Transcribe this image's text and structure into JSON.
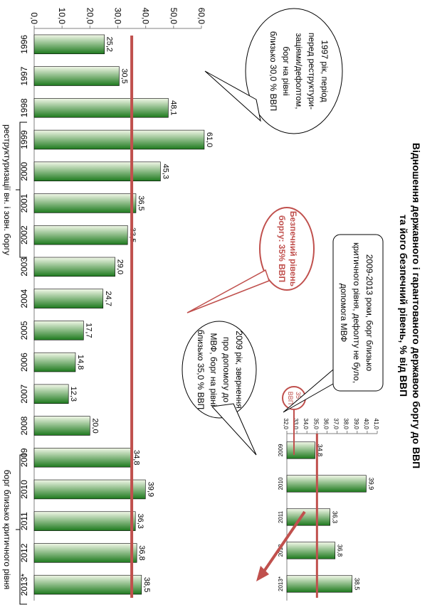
{
  "title_line1": "Відношення державного і гарантованого державою боргу до ВВП",
  "title_line2": "та його безпечний рівень, % від ВВП",
  "colors": {
    "bar_dark": "#1e7a1e",
    "bar_light": "#f2f8e8",
    "safe_line": "#c0504d",
    "axis": "#808080"
  },
  "chart_data": [
    {
      "type": "bar",
      "categories": [
        "1996",
        "1997",
        "1998",
        "1999",
        "2000",
        "2001",
        "2002",
        "2003",
        "2004",
        "2005",
        "2006",
        "2007",
        "2008",
        "2009",
        "2010",
        "2011",
        "2012",
        "2013*"
      ],
      "values": [
        25.2,
        30.5,
        48.1,
        61.0,
        45.3,
        36.5,
        33.5,
        29.0,
        24.7,
        17.7,
        14.8,
        12.3,
        20.0,
        34.8,
        39.9,
        36.3,
        36.8,
        38.5
      ],
      "value_labels": [
        "25,2",
        "30,5",
        "48,1",
        "61,0",
        "45,3",
        "36,5",
        "33,5",
        "29,0",
        "24,7",
        "17,7",
        "14,8",
        "12,3",
        "20,0",
        "34,8",
        "39,9",
        "36,3",
        "36,8",
        "38,5"
      ],
      "ylim": [
        0,
        60
      ],
      "yticks": [
        "0,0",
        "10,0",
        "20,0",
        "30,0",
        "40,0",
        "50,0",
        "60,0"
      ],
      "reference_line": 35
    },
    {
      "type": "bar",
      "categories": [
        "2009",
        "2010",
        "2011",
        "2012",
        "2013*"
      ],
      "values": [
        34.8,
        39.9,
        36.3,
        36.8,
        38.5
      ],
      "value_labels": [
        "34,8",
        "39,9",
        "36,3",
        "36,8",
        "38,5"
      ],
      "ylim": [
        32,
        41
      ],
      "yticks": [
        "32,0",
        "33,0",
        "34,0",
        "35,0",
        "36,0",
        "37,0",
        "38,0",
        "39,0",
        "40,0",
        "41,0"
      ],
      "reference_line": 35
    }
  ],
  "annotations": {
    "note_1997": [
      "1997 рік, період",
      "перед реструктури-",
      "заціями/дефолтом,",
      "борг на рівні",
      "близько 30,0 % ВВП"
    ],
    "note_2009_2013": [
      "2009-2013 роки, борг близько",
      "критичного рівня, дефолту не було,",
      "допомога МВФ"
    ],
    "note_safe": [
      "Безпечний рівень",
      "боргу: 35% ВВП"
    ],
    "note_2009": [
      "2009 рік, звернення",
      "про допомогу до",
      "МВФ, борг на рівні",
      "близько 35,0 % ВВП"
    ],
    "bubble_35": [
      "35%",
      "ВВП"
    ],
    "bracket_restructuring": "реструктуризації вн. і зовн. боргу",
    "bracket_critical": "борг близько критичного рівня"
  }
}
